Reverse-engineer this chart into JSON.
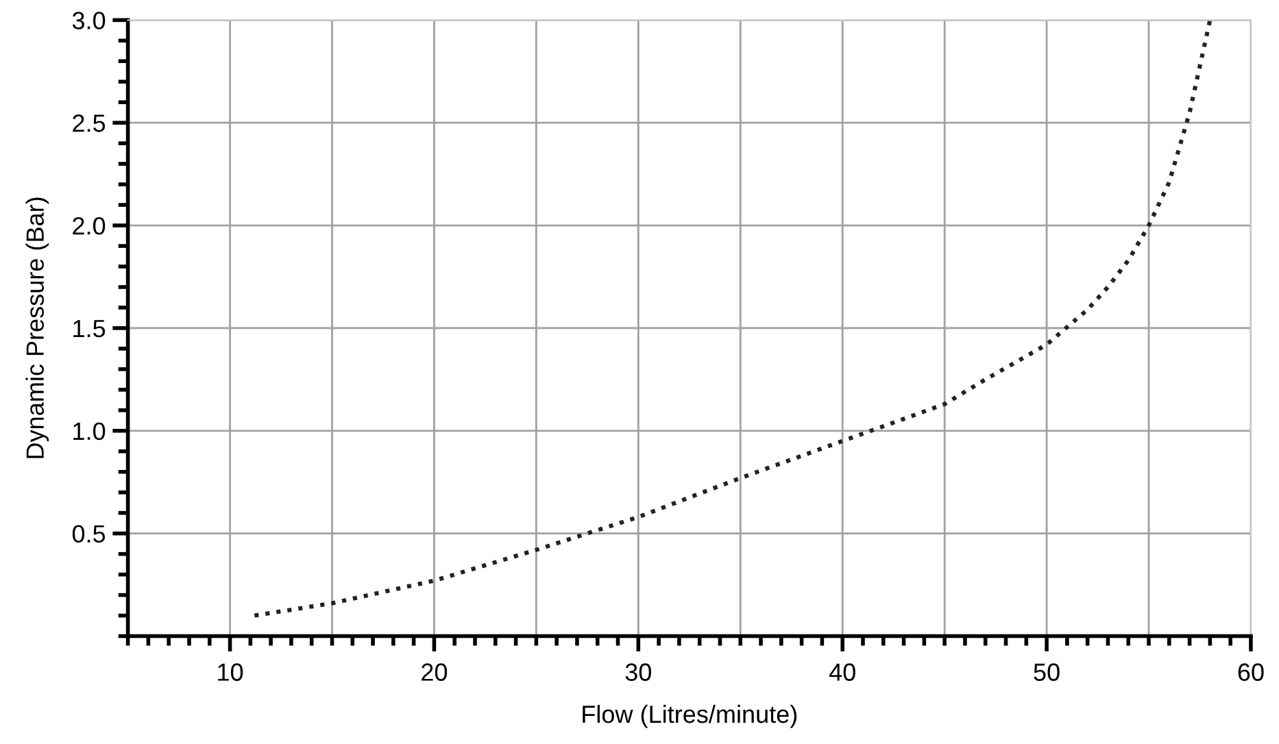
{
  "chart_data": {
    "type": "line",
    "xlabel": "Flow (Litres/minute)",
    "ylabel": "Dynamic Pressure (Bar)",
    "x": [
      11.2,
      15,
      20,
      25,
      30,
      35,
      40,
      45,
      47,
      50,
      52,
      53,
      54,
      55,
      56,
      57,
      58
    ],
    "series": [
      {
        "color": "#222222",
        "values": [
          0.1,
          0.16,
          0.27,
          0.42,
          0.58,
          0.77,
          0.95,
          1.13,
          1.25,
          1.42,
          1.59,
          1.7,
          1.83,
          2.0,
          2.21,
          2.55,
          3.0
        ]
      }
    ],
    "xlim": [
      5,
      60
    ],
    "xticks": [
      10,
      20,
      30,
      40,
      50,
      60
    ],
    "ylim": [
      0,
      3.0
    ],
    "yticks": [
      {
        "value": 0.5,
        "label": "0.5"
      },
      {
        "value": 1.0,
        "label": "1.0"
      },
      {
        "value": 1.5,
        "label": "1.5"
      },
      {
        "value": 2.0,
        "label": "2.0"
      },
      {
        "value": 2.5,
        "label": "2.5"
      },
      {
        "value": 3.0,
        "label": "3.0"
      }
    ],
    "grid": true,
    "line_style": "dotted",
    "marker": "none"
  }
}
